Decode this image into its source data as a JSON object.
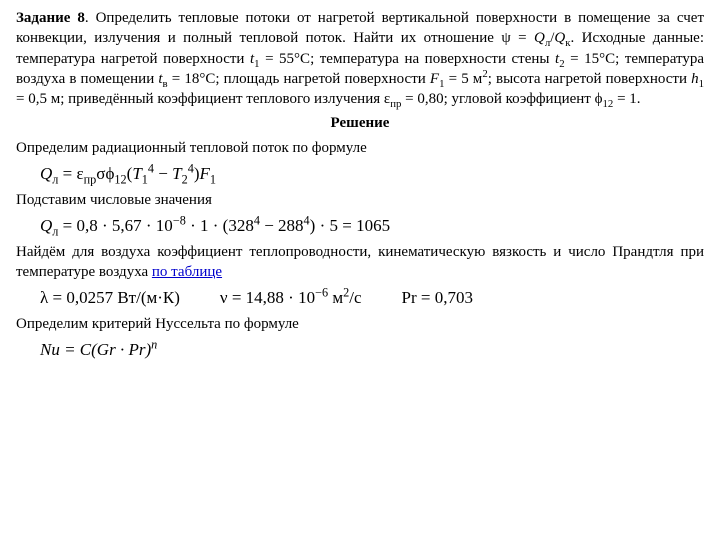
{
  "task_label": "Задание 8",
  "task_body_1": ". Определить тепловые потоки от нагретой вертикальной поверхности в помещение за счет конвекции, излучения и полный тепловой поток. Найти их отношение ψ = ",
  "task_Q_ratio_a": "Q",
  "task_Q_ratio_a_sub": "л",
  "task_Q_ratio_b": "Q",
  "task_Q_ratio_b_sub": "к",
  "task_body_2": ". Исходные данные: температура нагретой поверхности ",
  "t1_sym": "t",
  "t1_sub": "1",
  "t1_val": " = 55°С; температура на поверхности стены ",
  "t2_sym": "t",
  "t2_sub": "2",
  "t2_val": " = 15°С; температура воздуха в помещении ",
  "tv_sym": "t",
  "tv_sub": "в",
  "tv_val": " = 18°С; площадь нагретой поверхности ",
  "F1_sym": "F",
  "F1_sub": "1",
  "F1_val": " = 5 м",
  "F1_sup": "2",
  "task_body_3": "; высота нагретой поверхности ",
  "h1_sym": "h",
  "h1_sub": "1",
  "h1_val": " = 0,5 м; приведённый коэффициент теплового излучения ε",
  "eps_sub": "пр",
  "eps_val": " = 0,80; угловой коэффициент ϕ",
  "phi_sub": "12",
  "phi_val": " = 1.",
  "solution_title": "Решение",
  "line_rad": "Определим радиационный тепловой поток по формуле",
  "eq1_lhs": "Q",
  "eq1_lhs_sub": "л",
  "eq1_eq": " = ε",
  "eq1_eps_sub": "пр",
  "eq1_sigma": "σϕ",
  "eq1_phi_sub": "12",
  "eq1_paren_open": "(",
  "eq1_T1": "T",
  "eq1_T1_sub": "1",
  "eq1_T1_sup": "4",
  "eq1_minus": " − ",
  "eq1_T2": "T",
  "eq1_T2_sub": "2",
  "eq1_T2_sup": "4",
  "eq1_paren_close": ")",
  "eq1_F": "F",
  "eq1_F_sub": "1",
  "line_sub": "Подставим числовые значения",
  "eq2_lhs": "Q",
  "eq2_lhs_sub": "л",
  "eq2_body_a": " = 0,8 · 5,67 · 10",
  "eq2_exp": "−8",
  "eq2_body_b": " · 1 · (328",
  "eq2_p4a": "4",
  "eq2_body_c": " − 288",
  "eq2_p4b": "4",
  "eq2_body_d": ") · 5 = 1065",
  "line_air_a": "Найдём для воздуха коэффициент теплопроводности, кинематическую вязкость и число Прандтля при температуре воздуха ",
  "line_air_link": "по таблице",
  "eq3a": "λ = 0,0257 Вт/(м·К)",
  "eq3b_a": "ν = 14,88 · 10",
  "eq3b_exp": "−6",
  "eq3b_b": " м",
  "eq3b_sup": "2",
  "eq3b_c": "/с",
  "eq3c": "Pr = 0,703",
  "line_nu": "Определим критерий Нуссельта по формуле",
  "eq4_a": "Nu = C(Gr · Pr)",
  "eq4_n": "n"
}
